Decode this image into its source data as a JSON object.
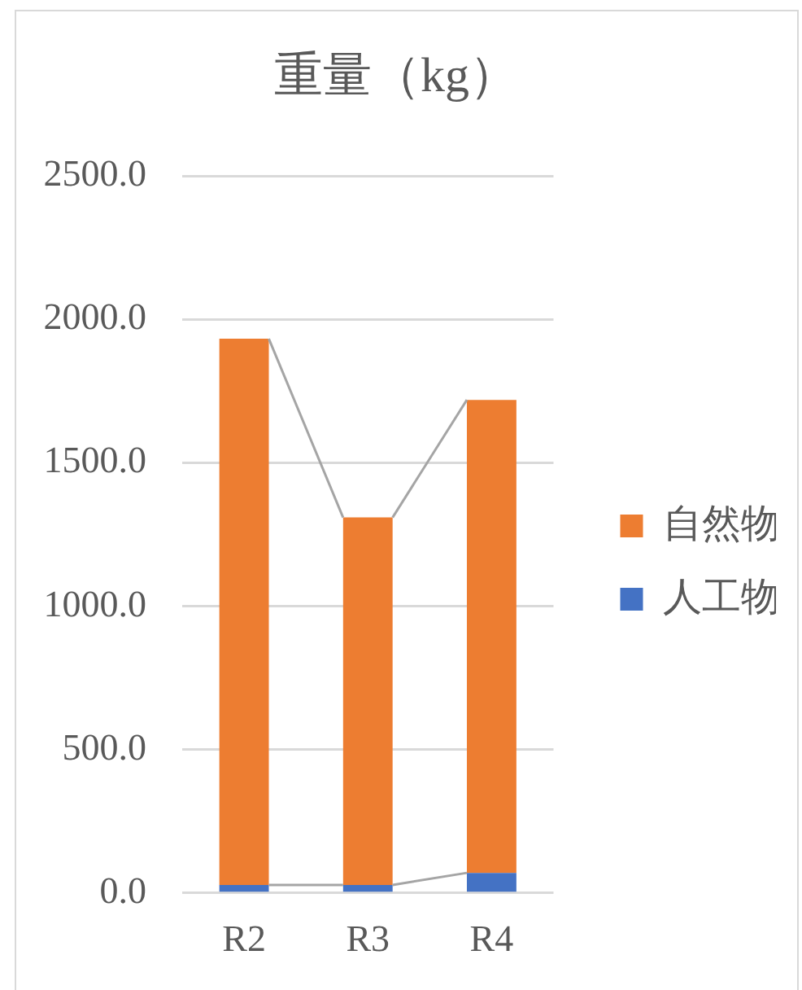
{
  "chart_data": {
    "type": "bar",
    "title": "重量（kg）",
    "categories": [
      "R2",
      "R3",
      "R4"
    ],
    "series": [
      {
        "name": "人工物",
        "color": "#4472c4",
        "values": [
          28,
          28,
          70
        ]
      },
      {
        "name": "自然物",
        "color": "#ed7d31",
        "values": [
          1904,
          1281,
          1649
        ]
      }
    ],
    "stacked": true,
    "ylim": [
      0,
      2500
    ],
    "yticks": [
      {
        "value": 0,
        "label": "0.0"
      },
      {
        "value": 500,
        "label": "500.0"
      },
      {
        "value": 1000,
        "label": "1000.0"
      },
      {
        "value": 1500,
        "label": "1500.0"
      },
      {
        "value": 2000,
        "label": "2000.0"
      },
      {
        "value": 2500,
        "label": "2500.0"
      }
    ],
    "grid": "y",
    "legend": "right"
  }
}
